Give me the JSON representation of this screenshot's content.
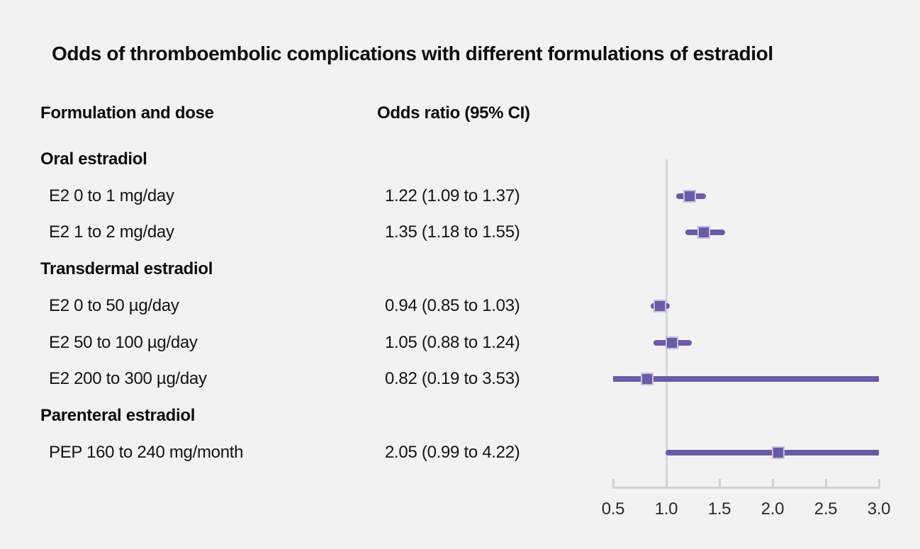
{
  "title": "Odds of thromboembolic complications with different formulations of estradiol",
  "columns": {
    "formulation": "Formulation and dose",
    "odds_ratio": "Odds ratio (95% CI)"
  },
  "colors": {
    "background": "#f2f2f2",
    "marker_purple": "#6b5ba6",
    "marker_border": "#c7bde0",
    "axis_gray": "#ccd1da",
    "grid_gray": "#d2d6dd",
    "text_dark": "#0d0d0d"
  },
  "chart_data": {
    "type": "forest",
    "x_range": [
      0.5,
      3.0
    ],
    "reference_line": 1.0,
    "grid": false,
    "ticks": [
      {
        "value": 0.5,
        "label": "0.5"
      },
      {
        "value": 1.0,
        "label": "1.0"
      },
      {
        "value": 1.5,
        "label": "1.5"
      },
      {
        "value": 2.0,
        "label": "2.0"
      },
      {
        "value": 2.5,
        "label": "2.5"
      },
      {
        "value": 3.0,
        "label": "3.0"
      }
    ],
    "groups": [
      {
        "label": "Oral estradiol",
        "items": [
          {
            "label": "E2 0 to 1 mg/day",
            "or_text": "1.22 (1.09 to 1.37)",
            "or": 1.22,
            "ci_low": 1.09,
            "ci_high": 1.37
          },
          {
            "label": "E2 1 to 2 mg/day",
            "or_text": "1.35 (1.18 to 1.55)",
            "or": 1.35,
            "ci_low": 1.18,
            "ci_high": 1.55
          }
        ]
      },
      {
        "label": "Transdermal estradiol",
        "items": [
          {
            "label": "E2 0 to 50 µg/day",
            "or_text": "0.94 (0.85 to 1.03)",
            "or": 0.94,
            "ci_low": 0.85,
            "ci_high": 1.03
          },
          {
            "label": "E2 50 to 100 µg/day",
            "or_text": "1.05 (0.88 to 1.24)",
            "or": 1.05,
            "ci_low": 0.88,
            "ci_high": 1.24
          },
          {
            "label": "E2 200 to 300 µg/day",
            "or_text": "0.82 (0.19 to 3.53)",
            "or": 0.82,
            "ci_low": 0.19,
            "ci_high": 3.53
          }
        ]
      },
      {
        "label": "Parenteral estradiol",
        "items": [
          {
            "label": "PEP 160 to 240 mg/month",
            "or_text": "2.05 (0.99 to 4.22)",
            "or": 2.05,
            "ci_low": 0.99,
            "ci_high": 4.22
          }
        ]
      }
    ]
  }
}
